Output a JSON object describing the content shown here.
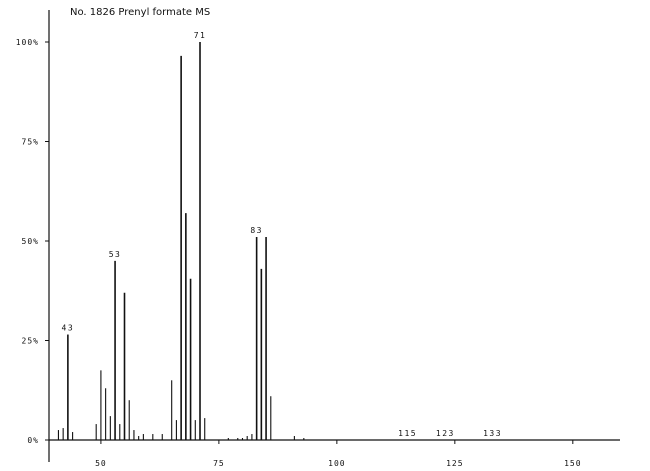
{
  "chart_data": {
    "type": "bar",
    "title": "No. 1826 Prenyl formate MS",
    "xlabel": "",
    "ylabel": "",
    "xlim": [
      39,
      160
    ],
    "ylim": [
      0,
      100
    ],
    "x_ticks": [
      50,
      75,
      100,
      125,
      150
    ],
    "x_tick_labels": [
      "50",
      "75",
      "100",
      "125",
      "150"
    ],
    "y_ticks": [
      0,
      25,
      50,
      75,
      100
    ],
    "y_tick_labels": [
      "0%",
      "25%",
      "50%",
      "75%",
      "100%"
    ],
    "grid": false,
    "peaks": [
      {
        "mz": 41,
        "intensity": 2.5
      },
      {
        "mz": 42,
        "intensity": 3
      },
      {
        "mz": 43,
        "intensity": 26.5
      },
      {
        "mz": 44,
        "intensity": 2
      },
      {
        "mz": 49,
        "intensity": 4
      },
      {
        "mz": 50,
        "intensity": 17.5
      },
      {
        "mz": 51,
        "intensity": 13
      },
      {
        "mz": 52,
        "intensity": 6
      },
      {
        "mz": 53,
        "intensity": 45
      },
      {
        "mz": 54,
        "intensity": 4
      },
      {
        "mz": 55,
        "intensity": 37
      },
      {
        "mz": 56,
        "intensity": 10
      },
      {
        "mz": 57,
        "intensity": 2.5
      },
      {
        "mz": 58,
        "intensity": 1
      },
      {
        "mz": 59,
        "intensity": 1.5
      },
      {
        "mz": 61,
        "intensity": 1.5
      },
      {
        "mz": 63,
        "intensity": 1.5
      },
      {
        "mz": 65,
        "intensity": 15
      },
      {
        "mz": 66,
        "intensity": 5
      },
      {
        "mz": 67,
        "intensity": 96.5
      },
      {
        "mz": 68,
        "intensity": 57
      },
      {
        "mz": 69,
        "intensity": 40.5
      },
      {
        "mz": 70,
        "intensity": 5
      },
      {
        "mz": 71,
        "intensity": 100
      },
      {
        "mz": 72,
        "intensity": 5.5
      },
      {
        "mz": 77,
        "intensity": 0.5
      },
      {
        "mz": 79,
        "intensity": 0.5
      },
      {
        "mz": 80,
        "intensity": 0.5
      },
      {
        "mz": 81,
        "intensity": 1
      },
      {
        "mz": 82,
        "intensity": 1.5
      },
      {
        "mz": 83,
        "intensity": 51
      },
      {
        "mz": 84,
        "intensity": 43
      },
      {
        "mz": 85,
        "intensity": 51
      },
      {
        "mz": 86,
        "intensity": 11
      },
      {
        "mz": 91,
        "intensity": 1
      },
      {
        "mz": 93,
        "intensity": 0.5
      }
    ],
    "peak_labels": [
      {
        "mz": 43,
        "intensity": 26.5,
        "label": "43"
      },
      {
        "mz": 53,
        "intensity": 45,
        "label": "53"
      },
      {
        "mz": 71,
        "intensity": 100,
        "label": "71"
      },
      {
        "mz": 83,
        "intensity": 51,
        "label": "83"
      },
      {
        "mz": 115,
        "intensity": 0,
        "label": "115"
      },
      {
        "mz": 123,
        "intensity": 0,
        "label": "123"
      },
      {
        "mz": 133,
        "intensity": 0,
        "label": "133"
      }
    ]
  }
}
